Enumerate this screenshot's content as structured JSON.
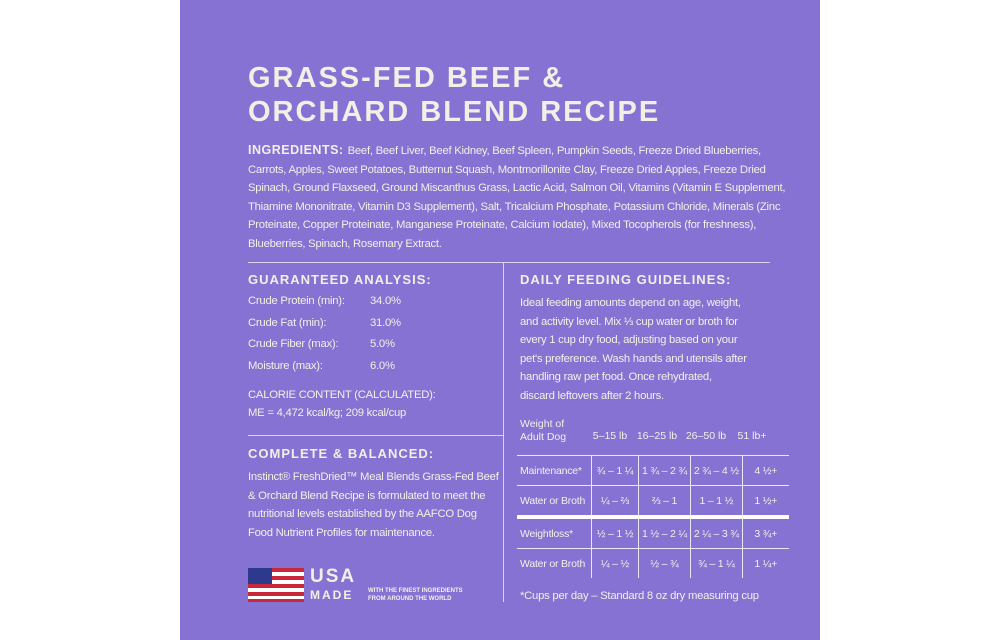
{
  "header": {
    "title": [
      "GRASS-FED BEEF &",
      "ORCHARD BLEND RECIPE"
    ]
  },
  "ingredients": {
    "label": "INGREDIENTS:",
    "lines": [
      "Beef, Beef Liver, Beef Kidney, Beef Spleen, Pumpkin Seeds, Freeze Dried Blueberries,",
      "Carrots, Apples, Sweet Potatoes, Butternut Squash, Montmorillonite Clay, Freeze Dried Apples, Freeze Dried",
      "Spinach, Ground Flaxseed, Ground Miscanthus Grass, Lactic Acid, Salmon Oil, Vitamins (Vitamin E Supplement,",
      "Thiamine Mononitrate, Vitamin D3 Supplement), Salt, Tricalcium Phosphate, Potassium Chloride, Minerals (Zinc",
      "Proteinate, Copper Proteinate, Manganese Proteinate, Calcium Iodate), Mixed Tocopherols (for freshness),",
      "Blueberries, Spinach, Rosemary Extract."
    ]
  },
  "analysis": {
    "heading": "GUARANTEED ANALYSIS:",
    "rows": [
      [
        "Crude Protein (min):",
        "34.0%"
      ],
      [
        "Crude Fat (min):",
        "31.0%"
      ],
      [
        "Crude Fiber (max):",
        "5.0%"
      ],
      [
        "Moisture (max):",
        "6.0%"
      ]
    ],
    "calorie_heading": "CALORIE CONTENT (CALCULATED):",
    "calorie_value": "ME = 4,472 kcal/kg; 209 kcal/cup"
  },
  "complete": {
    "heading": "COMPLETE & BALANCED:",
    "lines": [
      "Instinct® FreshDried™ Meal Blends Grass-Fed Beef",
      "& Orchard Blend Recipe is formulated to meet the",
      "nutritional levels established by the AAFCO Dog",
      "Food Nutrient Profiles for maintenance."
    ]
  },
  "badge": {
    "country": "USA",
    "made": "MADE",
    "tagline": [
      "WITH THE FINEST INGREDIENTS",
      "FROM AROUND THE WORLD"
    ]
  },
  "feeding": {
    "heading": "DAILY FEEDING GUIDELINES:",
    "lines": [
      "Ideal feeding amounts depend on age, weight,",
      "and activity level. Mix ⅓ cup water or broth for",
      "every 1 cup dry food, adjusting based on your",
      "pet's preference. Wash hands and utensils after",
      "handling raw pet food. Once rehydrated,",
      "discard leftovers after 2 hours."
    ],
    "table": {
      "corner": [
        "Weight of",
        "Adult Dog"
      ],
      "columns": [
        "5–15 lb",
        "16–25 lb",
        "26–50 lb",
        "51 lb+"
      ],
      "rows": [
        [
          "Maintenance*",
          "¾ – 1 ¼",
          "1 ¾ – 2 ¾",
          "2 ¾ – 4 ½",
          "4 ½+"
        ],
        [
          "Water or Broth",
          "¼ – ⅔",
          "⅔ – 1",
          "1 – 1 ½",
          "1 ½+"
        ],
        [
          "Weightloss*",
          "½ – 1 ½",
          "1 ½ – 2 ¼",
          "2 ¼ – 3 ¾",
          "3 ¾+"
        ],
        [
          "Water or Broth",
          "¼ – ½",
          "½ – ¾",
          "¾ – 1 ¼",
          "1 ¼+"
        ]
      ]
    },
    "footnote": "*Cups per day – Standard 8 oz dry measuring cup"
  }
}
